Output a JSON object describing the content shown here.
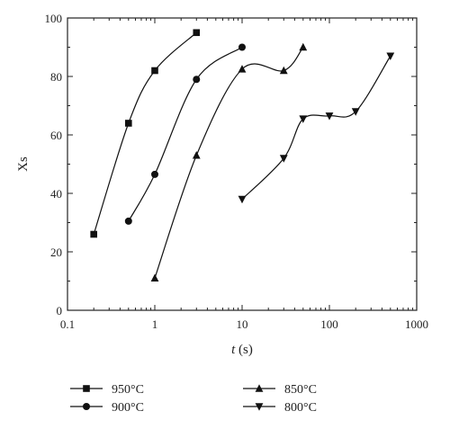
{
  "chart_data": {
    "type": "scatter",
    "xlabel": "t (s)",
    "xlabel_italic": "t",
    "xlabel_unit": " (s)",
    "ylabel": "Xs",
    "x_scale": "log",
    "xlim": [
      0.1,
      1000
    ],
    "ylim": [
      0,
      100
    ],
    "x_ticks": [
      "0.1",
      "1",
      "10",
      "100",
      "1000"
    ],
    "y_ticks": [
      "0",
      "20",
      "40",
      "60",
      "80",
      "100"
    ],
    "legend_placement": "bottom",
    "series": [
      {
        "name": "950°C",
        "marker": "square",
        "points": [
          [
            0.2,
            26
          ],
          [
            0.5,
            64
          ],
          [
            1,
            82
          ],
          [
            3,
            95
          ]
        ]
      },
      {
        "name": "900°C",
        "marker": "circle",
        "points": [
          [
            0.5,
            30.5
          ],
          [
            1,
            46.5
          ],
          [
            3,
            79
          ],
          [
            10,
            90
          ]
        ]
      },
      {
        "name": "850°C",
        "marker": "triangle-up",
        "points": [
          [
            1,
            11
          ],
          [
            3,
            53
          ],
          [
            10,
            82.5
          ],
          [
            30,
            82
          ],
          [
            50,
            90
          ]
        ]
      },
      {
        "name": "800°C",
        "marker": "triangle-down",
        "points": [
          [
            10,
            38
          ],
          [
            30,
            52
          ],
          [
            50,
            65.5
          ],
          [
            100,
            66.5
          ],
          [
            200,
            68
          ],
          [
            500,
            87
          ]
        ]
      }
    ]
  }
}
